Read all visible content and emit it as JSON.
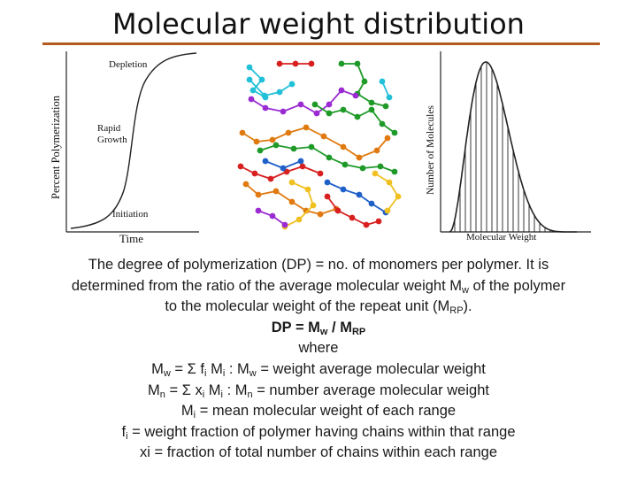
{
  "slide": {
    "title": "Molecular weight distribution",
    "accent_color": "#b35a1f"
  },
  "left_plot": {
    "ylabel": "Percent Polymerization",
    "xlabel": "Time",
    "annotations": [
      "Depletion",
      "Rapid",
      "Growth",
      "Initiation"
    ]
  },
  "right_plot": {
    "ylabel": "Number of Molecules",
    "xlabel": "Molecular Weight"
  },
  "chain_colors": [
    "#22c0d8",
    "#d82020",
    "#1e9a28",
    "#9a2bd2",
    "#e07a10",
    "#f0c020",
    "#1f5fc8",
    "#1ab0c0"
  ],
  "caption": {
    "l1": "The degree of polymerization (DP) = no. of monomers per polymer. It is",
    "l2a": "determined from the ratio of the average molecular weight M",
    "l2sub": "w",
    "l2b": " of the polymer",
    "l3a": "to the molecular weight of the repeat unit (M",
    "l3sub": "RP",
    "l3b": ").",
    "l4a": "DP = M",
    "l4sub1": "w",
    "l4b": " / M",
    "l4sub2": "RP",
    "l5": "where",
    "l6a": "M",
    "l6sub1": "w",
    "l6b": " = Σ f",
    "l6sub2": "i",
    "l6c": " M",
    "l6sub3": "i",
    "l6d": " : M",
    "l6sub4": "w",
    "l6e": " = weight average molecular weight",
    "l7a": "M",
    "l7sub1": "n",
    "l7b": " = Σ x",
    "l7sub2": "i",
    "l7c": " M",
    "l7sub3": "i",
    "l7d": " : M",
    "l7sub4": "n",
    "l7e": " = number average molecular weight",
    "l8a": "M",
    "l8sub": "i",
    "l8b": " = mean molecular weight of each range",
    "l9a": "f",
    "l9sub": "i",
    "l9b": " = weight fraction of polymer having chains within that range",
    "l10": "xi = fraction of total number of chains within each range"
  },
  "chart_data": [
    {
      "type": "line",
      "shape": "sigmoid",
      "xlabel": "Time",
      "ylabel": "Percent Polymerization",
      "annotations": [
        "Depletion",
        "Rapid Growth",
        "Initiation"
      ],
      "grid": false
    },
    {
      "type": "bar",
      "shape": "right-skewed distribution",
      "xlabel": "Molecular Weight",
      "ylabel": "Number of Molecules",
      "bar_count": 24,
      "grid": false
    }
  ]
}
